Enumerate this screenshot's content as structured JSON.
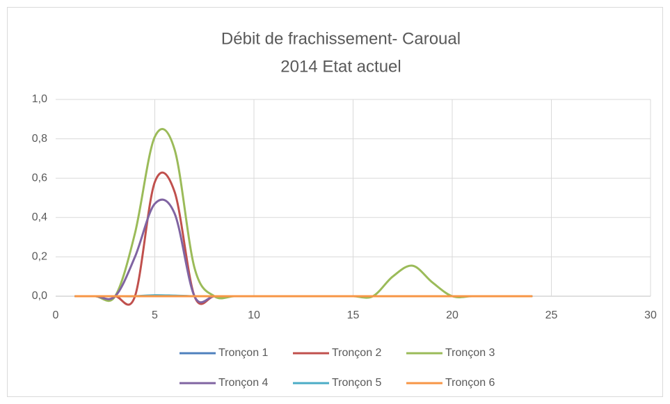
{
  "chart_data": {
    "type": "line",
    "title_lines": [
      "Débit de frachissement- Caroual",
      "2014 Etat actuel"
    ],
    "x": [
      1,
      2,
      3,
      4,
      5,
      6,
      7,
      8,
      9,
      10,
      11,
      12,
      13,
      14,
      15,
      16,
      17,
      18,
      19,
      20,
      21,
      22,
      23,
      24
    ],
    "series": [
      {
        "name": "Tronçon 1",
        "color": "#4f81bd",
        "values": [
          0,
          0,
          0,
          0,
          0,
          0,
          0,
          0,
          0,
          0,
          0,
          0,
          0,
          0,
          0,
          0,
          0,
          0,
          0,
          0,
          0,
          0,
          0,
          0
        ]
      },
      {
        "name": "Tronçon 2",
        "color": "#c0504d",
        "values": [
          0,
          0,
          0,
          0,
          0.58,
          0.53,
          0,
          0,
          0,
          0,
          0,
          0,
          0,
          0,
          0,
          0,
          0,
          0,
          0,
          0,
          0,
          0,
          0,
          0
        ]
      },
      {
        "name": "Tronçon 3",
        "color": "#9bbb59",
        "values": [
          0,
          0,
          0,
          0.32,
          0.81,
          0.745,
          0.145,
          0,
          0,
          0,
          0,
          0,
          0,
          0,
          0,
          0,
          0.1,
          0.155,
          0.07,
          0,
          0,
          0,
          0,
          0
        ]
      },
      {
        "name": "Tronçon 4",
        "color": "#8064a2",
        "values": [
          0,
          0,
          0,
          0.2,
          0.47,
          0.42,
          0,
          0,
          0,
          0,
          0,
          0,
          0,
          0,
          0,
          0,
          0,
          0,
          0,
          0,
          0,
          0,
          0,
          0
        ]
      },
      {
        "name": "Tronçon 5",
        "color": "#4bacc6",
        "values": [
          0,
          0,
          0,
          0,
          0.005,
          0.003,
          0,
          0,
          0,
          0,
          0,
          0,
          0,
          0,
          0,
          0,
          0,
          0,
          0,
          0,
          0,
          0,
          0,
          0
        ]
      },
      {
        "name": "Tronçon 6",
        "color": "#f79646",
        "values": [
          0,
          0,
          0,
          0,
          0,
          0,
          0,
          0,
          0,
          0,
          0,
          0,
          0,
          0,
          0,
          0,
          0,
          0,
          0,
          0,
          0,
          0,
          0,
          0
        ]
      }
    ],
    "xlim": [
      0,
      30
    ],
    "xticks": [
      0,
      5,
      10,
      15,
      20,
      25,
      30
    ],
    "ylim": [
      0,
      1
    ],
    "yticks": [
      {
        "value": 0,
        "label": "0,0"
      },
      {
        "value": 0.2,
        "label": "0,2"
      },
      {
        "value": 0.4,
        "label": "0,4"
      },
      {
        "value": 0.6,
        "label": "0,6"
      },
      {
        "value": 0.8,
        "label": "0,8"
      },
      {
        "value": 1,
        "label": "1,0"
      }
    ],
    "grid": true,
    "legend": "bottom"
  }
}
